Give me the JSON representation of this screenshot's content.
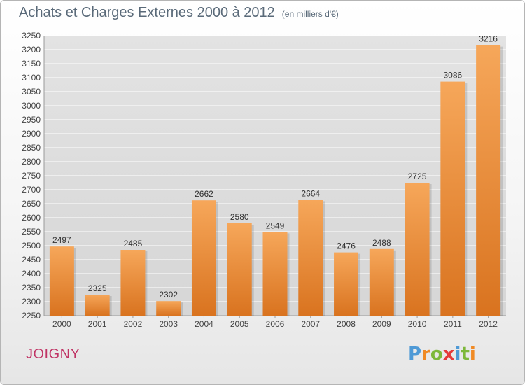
{
  "title": "Achats et Charges Externes 2000 à 2012",
  "subtitle": "(en milliers d'€)",
  "city": "JOIGNY",
  "logo": {
    "text": "Proxiti",
    "letters": [
      {
        "ch": "P",
        "color": "#4f9ad6"
      },
      {
        "ch": "r",
        "color": "#f08a24"
      },
      {
        "ch": "o",
        "color": "#7db83a"
      },
      {
        "ch": "x",
        "color": "#e53a3a"
      },
      {
        "ch": "i",
        "color": "#4f9ad6"
      },
      {
        "ch": "t",
        "color": "#7db83a"
      },
      {
        "ch": "i",
        "color": "#f08a24"
      }
    ]
  },
  "chart_data": {
    "type": "bar",
    "categories": [
      "2000",
      "2001",
      "2002",
      "2003",
      "2004",
      "2005",
      "2006",
      "2007",
      "2008",
      "2009",
      "2010",
      "2011",
      "2012"
    ],
    "values": [
      2497,
      2325,
      2485,
      2302,
      2662,
      2580,
      2549,
      2664,
      2476,
      2488,
      2725,
      3086,
      3216
    ],
    "ylim": [
      2250,
      3250
    ],
    "ytick_step": 50,
    "grid": true,
    "bar_color": "#ee8f3a",
    "bar_color_light": "#f6a75a",
    "bar_color_dark": "#d9731f",
    "data_labels": true
  }
}
